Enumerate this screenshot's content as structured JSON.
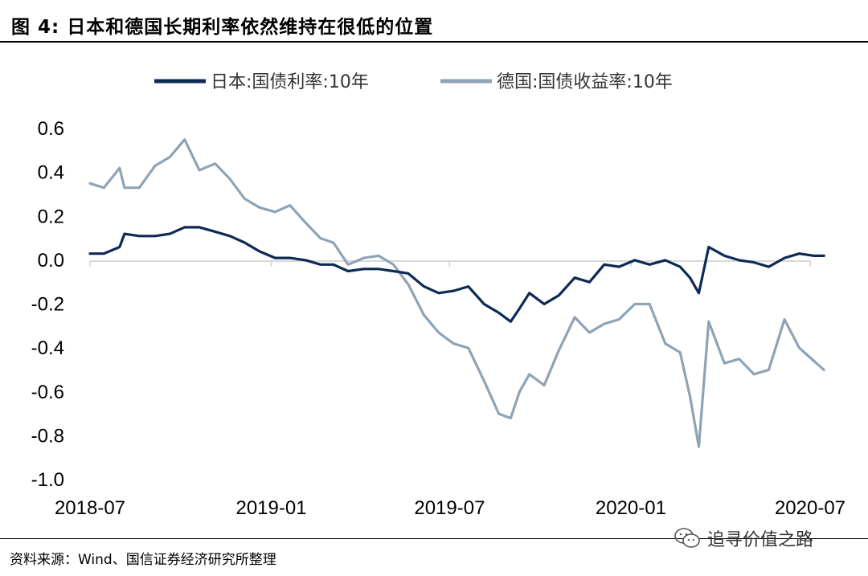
{
  "header": {
    "title": "图  4:  日本和德国长期利率依然维持在很低的位置"
  },
  "footer": {
    "source": "资料来源：Wind、国信证券经济研究所整理"
  },
  "watermark": {
    "text": "追寻价值之路",
    "icon": "wechat-icon"
  },
  "chart_data": {
    "type": "line",
    "title": "",
    "xlabel": "",
    "ylabel": "",
    "ylim": [
      -1.0,
      0.6
    ],
    "yticks": [
      0.6,
      0.4,
      0.2,
      0.0,
      -0.2,
      -0.4,
      -0.6,
      -0.8,
      -1.0
    ],
    "ytick_labels": [
      "0.6",
      "0.4",
      "0.2",
      "0.0",
      "-0.2",
      "-0.4",
      "-0.6",
      "-0.8",
      "-1.0"
    ],
    "xticks": [
      "2018-07",
      "2019-01",
      "2019-07",
      "2020-01",
      "2020-07"
    ],
    "grid": false,
    "zero_line": true,
    "legend_position": "top",
    "series": [
      {
        "name": "日本:国债利率:10年",
        "color": "#0d2a54",
        "points": [
          [
            "2018-07-01",
            0.03
          ],
          [
            "2018-07-15",
            0.03
          ],
          [
            "2018-07-31",
            0.06
          ],
          [
            "2018-08-05",
            0.12
          ],
          [
            "2018-08-20",
            0.11
          ],
          [
            "2018-09-05",
            0.11
          ],
          [
            "2018-09-20",
            0.12
          ],
          [
            "2018-10-05",
            0.15
          ],
          [
            "2018-10-20",
            0.15
          ],
          [
            "2018-11-05",
            0.13
          ],
          [
            "2018-11-20",
            0.11
          ],
          [
            "2018-12-05",
            0.08
          ],
          [
            "2018-12-20",
            0.04
          ],
          [
            "2019-01-05",
            0.01
          ],
          [
            "2019-01-20",
            0.01
          ],
          [
            "2019-02-05",
            0.0
          ],
          [
            "2019-02-20",
            -0.02
          ],
          [
            "2019-03-05",
            -0.02
          ],
          [
            "2019-03-20",
            -0.05
          ],
          [
            "2019-04-05",
            -0.04
          ],
          [
            "2019-04-20",
            -0.04
          ],
          [
            "2019-05-05",
            -0.05
          ],
          [
            "2019-05-20",
            -0.06
          ],
          [
            "2019-06-05",
            -0.12
          ],
          [
            "2019-06-20",
            -0.15
          ],
          [
            "2019-07-05",
            -0.14
          ],
          [
            "2019-07-20",
            -0.12
          ],
          [
            "2019-08-05",
            -0.2
          ],
          [
            "2019-08-20",
            -0.24
          ],
          [
            "2019-09-01",
            -0.28
          ],
          [
            "2019-09-10",
            -0.22
          ],
          [
            "2019-09-20",
            -0.15
          ],
          [
            "2019-10-05",
            -0.2
          ],
          [
            "2019-10-20",
            -0.16
          ],
          [
            "2019-11-05",
            -0.08
          ],
          [
            "2019-11-20",
            -0.1
          ],
          [
            "2019-12-05",
            -0.02
          ],
          [
            "2019-12-20",
            -0.03
          ],
          [
            "2020-01-05",
            0.0
          ],
          [
            "2020-01-20",
            -0.02
          ],
          [
            "2020-02-05",
            0.0
          ],
          [
            "2020-02-20",
            -0.03
          ],
          [
            "2020-03-01",
            -0.08
          ],
          [
            "2020-03-10",
            -0.15
          ],
          [
            "2020-03-20",
            0.06
          ],
          [
            "2020-04-05",
            0.02
          ],
          [
            "2020-04-20",
            0.0
          ],
          [
            "2020-05-05",
            -0.01
          ],
          [
            "2020-05-20",
            -0.03
          ],
          [
            "2020-06-05",
            0.01
          ],
          [
            "2020-06-20",
            0.03
          ],
          [
            "2020-07-05",
            0.02
          ],
          [
            "2020-07-15",
            0.02
          ]
        ]
      },
      {
        "name": "德国:国债收益率:10年",
        "color": "#8fa3b6",
        "points": [
          [
            "2018-07-01",
            0.35
          ],
          [
            "2018-07-15",
            0.33
          ],
          [
            "2018-07-31",
            0.42
          ],
          [
            "2018-08-05",
            0.33
          ],
          [
            "2018-08-20",
            0.33
          ],
          [
            "2018-09-05",
            0.43
          ],
          [
            "2018-09-20",
            0.47
          ],
          [
            "2018-10-05",
            0.55
          ],
          [
            "2018-10-20",
            0.41
          ],
          [
            "2018-11-05",
            0.44
          ],
          [
            "2018-11-20",
            0.37
          ],
          [
            "2018-12-05",
            0.28
          ],
          [
            "2018-12-20",
            0.24
          ],
          [
            "2019-01-05",
            0.22
          ],
          [
            "2019-01-20",
            0.25
          ],
          [
            "2019-02-05",
            0.17
          ],
          [
            "2019-02-20",
            0.1
          ],
          [
            "2019-03-05",
            0.08
          ],
          [
            "2019-03-20",
            -0.02
          ],
          [
            "2019-04-05",
            0.01
          ],
          [
            "2019-04-20",
            0.02
          ],
          [
            "2019-05-05",
            -0.02
          ],
          [
            "2019-05-20",
            -0.11
          ],
          [
            "2019-06-05",
            -0.25
          ],
          [
            "2019-06-20",
            -0.33
          ],
          [
            "2019-07-05",
            -0.38
          ],
          [
            "2019-07-20",
            -0.4
          ],
          [
            "2019-08-05",
            -0.55
          ],
          [
            "2019-08-20",
            -0.7
          ],
          [
            "2019-09-01",
            -0.72
          ],
          [
            "2019-09-10",
            -0.6
          ],
          [
            "2019-09-20",
            -0.52
          ],
          [
            "2019-10-05",
            -0.57
          ],
          [
            "2019-10-20",
            -0.41
          ],
          [
            "2019-11-05",
            -0.26
          ],
          [
            "2019-11-20",
            -0.33
          ],
          [
            "2019-12-05",
            -0.29
          ],
          [
            "2019-12-20",
            -0.27
          ],
          [
            "2020-01-05",
            -0.2
          ],
          [
            "2020-01-20",
            -0.2
          ],
          [
            "2020-02-05",
            -0.38
          ],
          [
            "2020-02-20",
            -0.42
          ],
          [
            "2020-03-01",
            -0.62
          ],
          [
            "2020-03-10",
            -0.85
          ],
          [
            "2020-03-20",
            -0.28
          ],
          [
            "2020-04-05",
            -0.47
          ],
          [
            "2020-04-20",
            -0.45
          ],
          [
            "2020-05-05",
            -0.52
          ],
          [
            "2020-05-20",
            -0.5
          ],
          [
            "2020-06-05",
            -0.27
          ],
          [
            "2020-06-20",
            -0.4
          ],
          [
            "2020-07-05",
            -0.46
          ],
          [
            "2020-07-15",
            -0.5
          ]
        ]
      }
    ]
  }
}
